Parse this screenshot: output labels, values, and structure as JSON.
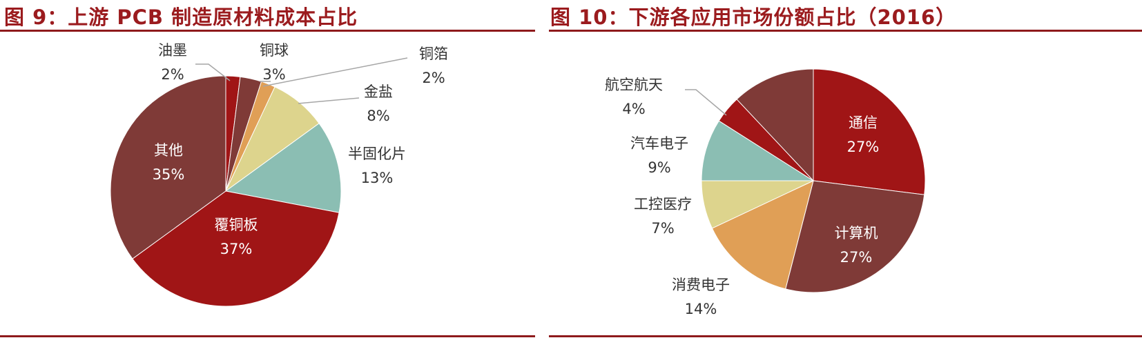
{
  "chart_data": [
    {
      "type": "pie",
      "title": "图 9：上游 PCB 制造原材料成本占比",
      "start": "top",
      "direction": "clockwise",
      "slices": [
        {
          "label": "油墨",
          "value": 2,
          "display": "2%",
          "color": "#A01516"
        },
        {
          "label": "铜球",
          "value": 3,
          "display": "3%",
          "color": "#7F3A37"
        },
        {
          "label": "铜箔",
          "value": 2,
          "display": "2%",
          "color": "#E09F56"
        },
        {
          "label": "金盐",
          "value": 8,
          "display": "8%",
          "color": "#DDD48D"
        },
        {
          "label": "半固化片",
          "value": 13,
          "display": "13%",
          "color": "#8BBEB3"
        },
        {
          "label": "覆铜板",
          "value": 37,
          "display": "37%",
          "color": "#A01516"
        },
        {
          "label": "其他",
          "value": 35,
          "display": "35%",
          "color": "#7F3A37"
        }
      ]
    },
    {
      "type": "pie",
      "title": "图 10：下游各应用市场份额占比（2016）",
      "start": "top",
      "direction": "clockwise",
      "slices": [
        {
          "label": "通信",
          "value": 27,
          "display": "27%",
          "color": "#A01516"
        },
        {
          "label": "计算机",
          "value": 27,
          "display": "27%",
          "color": "#7F3A37"
        },
        {
          "label": "消费电子",
          "value": 14,
          "display": "14%",
          "color": "#E09F56"
        },
        {
          "label": "工控医疗",
          "value": 7,
          "display": "7%",
          "color": "#DDD48D"
        },
        {
          "label": "汽车电子",
          "value": 9,
          "display": "9%",
          "color": "#8BBEB3"
        },
        {
          "label": "航空航天",
          "value": 4,
          "display": "4%",
          "color": "#A01516"
        },
        {
          "label": "",
          "value": 12,
          "display": "",
          "color": "#7F3A37"
        }
      ]
    }
  ],
  "colors": {
    "title": "#9B1B1E",
    "rule": "#8E1A1C"
  }
}
